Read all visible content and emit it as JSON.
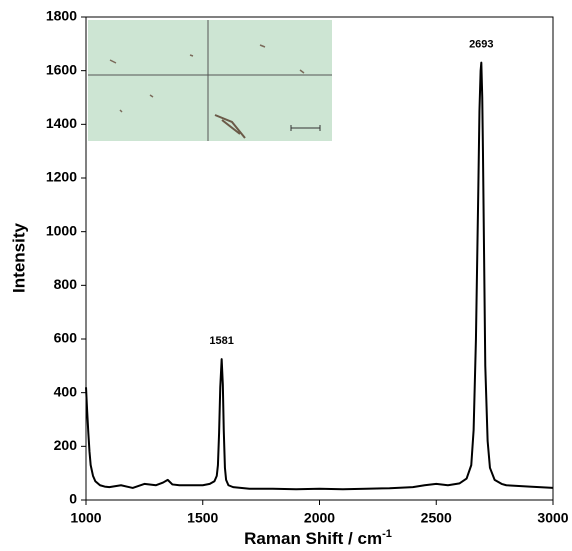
{
  "chart_data": {
    "type": "line",
    "x_label": "Raman Shift / cm",
    "x_label_sup": "-1",
    "y_label": "Intensity",
    "x": [
      1000,
      1005,
      1010,
      1015,
      1020,
      1030,
      1040,
      1060,
      1080,
      1100,
      1150,
      1200,
      1250,
      1300,
      1330,
      1350,
      1370,
      1400,
      1450,
      1500,
      1530,
      1550,
      1560,
      1565,
      1570,
      1575,
      1581,
      1586,
      1590,
      1595,
      1600,
      1610,
      1630,
      1700,
      1800,
      1900,
      2000,
      2100,
      2200,
      2300,
      2400,
      2450,
      2500,
      2550,
      2600,
      2630,
      2650,
      2660,
      2670,
      2680,
      2685,
      2690,
      2693,
      2697,
      2700,
      2705,
      2710,
      2720,
      2730,
      2750,
      2780,
      2800,
      2900,
      3000
    ],
    "series": [
      {
        "color": "#000000",
        "values": [
          420,
          330,
          250,
          180,
          130,
          90,
          70,
          55,
          50,
          48,
          55,
          45,
          60,
          55,
          65,
          75,
          58,
          55,
          55,
          55,
          60,
          70,
          90,
          130,
          250,
          420,
          525,
          430,
          260,
          120,
          75,
          55,
          48,
          42,
          42,
          40,
          42,
          40,
          42,
          44,
          48,
          55,
          60,
          55,
          62,
          80,
          130,
          260,
          600,
          1150,
          1450,
          1600,
          1630,
          1500,
          1300,
          900,
          500,
          220,
          120,
          75,
          60,
          55,
          50,
          45
        ]
      }
    ],
    "annotations": [
      {
        "text": "1581",
        "x": 1581,
        "y": 525
      },
      {
        "text": "2693",
        "x": 2693,
        "y": 1630
      }
    ],
    "xlim": [
      1000,
      3000
    ],
    "xticks": [
      1000,
      1500,
      2000,
      2500,
      3000
    ],
    "ylim": [
      0,
      1800
    ],
    "yticks": [
      0,
      200,
      400,
      600,
      800,
      1000,
      1200,
      1400,
      1600,
      1800
    ],
    "grid": false
  }
}
